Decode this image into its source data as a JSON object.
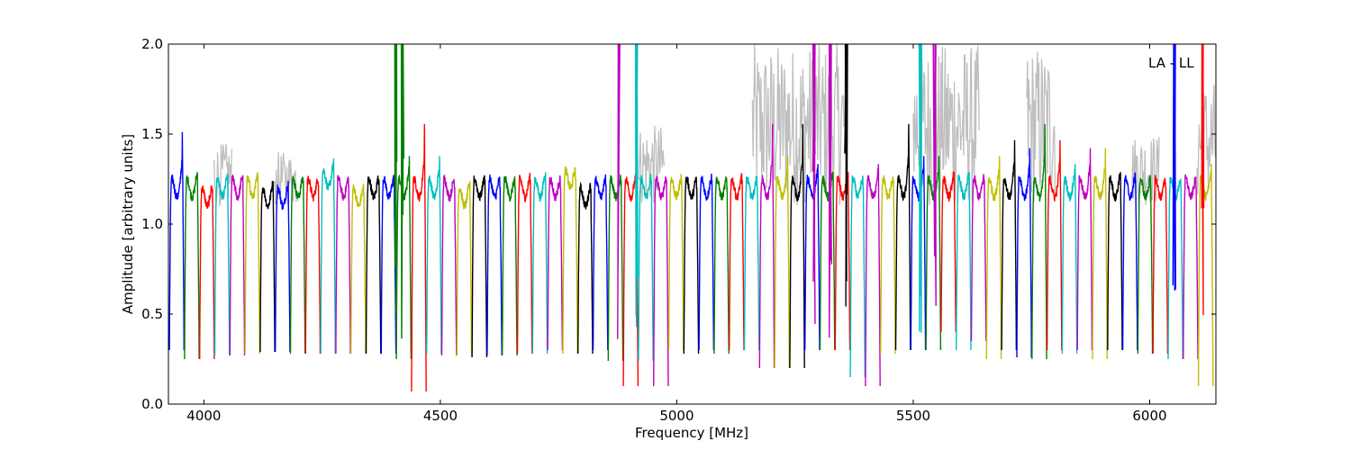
{
  "chart_data": {
    "type": "line",
    "title": "",
    "xlabel": "Frequency [MHz]",
    "ylabel": "Amplitude [arbitrary units]",
    "xlim": [
      3925,
      6140
    ],
    "ylim": [
      0.0,
      2.0
    ],
    "xticks": [
      4000,
      4500,
      5000,
      5500,
      6000
    ],
    "yticks": [
      0.0,
      0.5,
      1.0,
      1.5,
      2.0
    ],
    "xtick_labels": [
      "4000",
      "4500",
      "5000",
      "5500",
      "6000"
    ],
    "ytick_labels": [
      "0.0",
      "0.5",
      "1.0",
      "1.5",
      "2.0"
    ],
    "annotation": "LA - LL",
    "grid": false,
    "background_series_color": "#bfbfbf",
    "color_cycle": [
      "#0000ff",
      "#008000",
      "#ff0000",
      "#00bfbf",
      "#bf00bf",
      "#bfbf00",
      "#000000"
    ],
    "channel_width_mhz": 32,
    "first_channel_start_mhz": 3927,
    "channel_count": 69,
    "channel_level": [
      1.2,
      1.2,
      1.15,
      1.2,
      1.2,
      1.2,
      1.15,
      1.15,
      1.2,
      1.2,
      1.25,
      1.2,
      1.15,
      1.2,
      1.2,
      1.2,
      1.2,
      1.2,
      1.2,
      1.15,
      1.2,
      1.2,
      1.2,
      1.2,
      1.2,
      1.2,
      1.25,
      1.15,
      1.2,
      1.2,
      1.2,
      1.2,
      1.2,
      1.2,
      1.2,
      1.2,
      1.2,
      1.2,
      1.2,
      1.2,
      1.2,
      1.2,
      1.2,
      1.2,
      1.2,
      1.2,
      1.2,
      1.2,
      1.2,
      1.2,
      1.2,
      1.2,
      1.2,
      1.2,
      1.2,
      1.2,
      1.2,
      1.2,
      1.2,
      1.2,
      1.2,
      1.2,
      1.2,
      1.2,
      1.2,
      1.2,
      1.2,
      1.2,
      1.2
    ],
    "channel_edge_peak": [
      1.55,
      1.3,
      1.2,
      1.28,
      1.28,
      1.28,
      1.25,
      1.25,
      1.25,
      1.22,
      1.38,
      1.22,
      1.18,
      1.25,
      1.22,
      1.4,
      1.6,
      1.4,
      1.2,
      1.25,
      1.25,
      1.2,
      1.2,
      1.25,
      1.3,
      1.2,
      1.25,
      1.2,
      1.22,
      1.25,
      1.25,
      1.25,
      1.25,
      1.25,
      1.2,
      1.25,
      1.2,
      1.25,
      1.2,
      1.6,
      1.4,
      1.6,
      1.35,
      1.3,
      1.3,
      1.2,
      1.35,
      1.25,
      1.6,
      1.4,
      1.4,
      1.3,
      1.3,
      1.25,
      1.4,
      1.5,
      1.45,
      1.6,
      1.5,
      1.35,
      1.45,
      1.45,
      1.3,
      1.25,
      1.2,
      1.2,
      1.2,
      1.2,
      1.35
    ],
    "channel_edge_min": [
      0.3,
      0.25,
      0.25,
      0.27,
      0.27,
      0.28,
      0.29,
      0.29,
      0.28,
      0.28,
      0.28,
      0.28,
      0.28,
      0.28,
      0.28,
      0.25,
      0.07,
      0.28,
      0.27,
      0.27,
      0.26,
      0.27,
      0.27,
      0.28,
      0.28,
      0.3,
      0.28,
      0.28,
      0.3,
      0.24,
      0.1,
      0.24,
      0.1,
      0.3,
      0.28,
      0.3,
      0.28,
      0.3,
      0.3,
      0.2,
      0.2,
      0.2,
      0.3,
      0.3,
      0.3,
      0.15,
      0.1,
      0.28,
      0.3,
      0.3,
      0.3,
      0.4,
      0.3,
      0.35,
      0.25,
      0.3,
      0.26,
      0.25,
      0.3,
      0.28,
      0.3,
      0.25,
      0.3,
      0.3,
      0.28,
      0.28,
      0.25,
      0.25,
      0.1
    ],
    "rfi_spikes": [
      {
        "x": 4405,
        "y": 2.0,
        "color": "#008000"
      },
      {
        "x": 4420,
        "y": 2.0,
        "color": "#008000"
      },
      {
        "x": 4877,
        "y": 2.0,
        "color": "#bf00bf"
      },
      {
        "x": 4915,
        "y": 2.0,
        "color": "#00bfbf"
      },
      {
        "x": 5290,
        "y": 2.0,
        "color": "#bf00bf"
      },
      {
        "x": 5325,
        "y": 2.0,
        "color": "#bf00bf"
      },
      {
        "x": 5358,
        "y": 2.0,
        "color": "#000000"
      },
      {
        "x": 5515,
        "y": 2.0,
        "color": "#00bfbf"
      },
      {
        "x": 5545,
        "y": 2.0,
        "color": "#bf00bf"
      },
      {
        "x": 6052,
        "y": 2.0,
        "color": "#0000ff"
      },
      {
        "x": 6112,
        "y": 2.0,
        "color": "#ff0000"
      }
    ],
    "background_noisy_regions": [
      [
        5160,
        5360,
        2.0
      ],
      [
        5500,
        5640,
        2.0
      ],
      [
        5740,
        5800,
        2.0
      ],
      [
        4920,
        4975,
        1.55
      ],
      [
        4020,
        4060,
        1.45
      ],
      [
        4150,
        4200,
        1.4
      ],
      [
        5960,
        6020,
        1.5
      ],
      [
        6100,
        6140,
        1.8
      ]
    ]
  }
}
